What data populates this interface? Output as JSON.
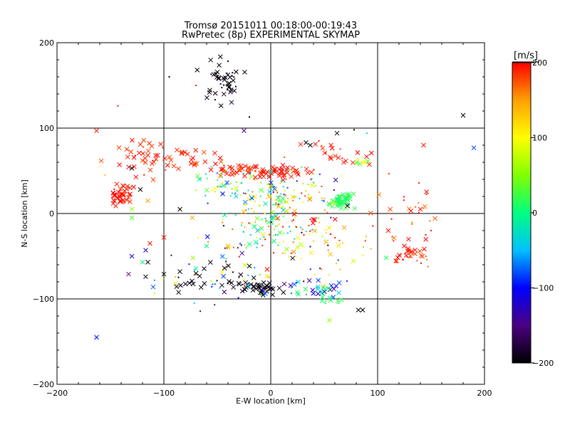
{
  "chart_data": {
    "type": "scatter",
    "title": "Tromsø 20151011 00:18:00-00:19:43",
    "subtitle": "RwPretec (8p) EXPERIMENTAL SKYMAP",
    "xlabel": "E-W location [km]",
    "ylabel": "N-S location [km]",
    "xlim": [
      -200,
      200
    ],
    "ylim": [
      -200,
      200
    ],
    "xticks": [
      "−200",
      "−100",
      "0",
      "100",
      "200"
    ],
    "yticks": [
      "−200",
      "−100",
      "0",
      "100",
      "200"
    ],
    "grid": true,
    "colorbar": {
      "label": "[m/s]",
      "range": [
        -200,
        200
      ],
      "ticks": [
        "200",
        "100",
        "0",
        "−100",
        "−200"
      ],
      "colors": [
        "#000000",
        "#4b0082",
        "#0000ff",
        "#00c0ff",
        "#00ff80",
        "#80ff00",
        "#ffff00",
        "#ffa000",
        "#ff0000"
      ]
    },
    "markers": {
      "cross": "x",
      "dot": "+"
    },
    "clusters": [
      {
        "x": -45,
        "y": 155,
        "sx": 9,
        "sy": 14,
        "n": 45,
        "v": -195,
        "dv": 10,
        "m": "cross"
      },
      {
        "x": -140,
        "y": 22,
        "sx": 5,
        "sy": 6,
        "n": 45,
        "v": 195,
        "dv": 10,
        "m": "cross"
      },
      {
        "x": -115,
        "y": 62,
        "sx": 15,
        "sy": 12,
        "n": 35,
        "v": 190,
        "dv": 15,
        "m": "cross"
      },
      {
        "x": -75,
        "y": 62,
        "sx": 22,
        "sy": 8,
        "n": 30,
        "v": 190,
        "dv": 15,
        "m": "cross"
      },
      {
        "x": -25,
        "y": 50,
        "sx": 14,
        "sy": 4,
        "n": 40,
        "v": 190,
        "dv": 15,
        "m": "cross"
      },
      {
        "x": 12,
        "y": 48,
        "sx": 12,
        "sy": 4,
        "n": 40,
        "v": 195,
        "dv": 10,
        "m": "cross"
      },
      {
        "x": 65,
        "y": 15,
        "sx": 5,
        "sy": 5,
        "n": 60,
        "v": 15,
        "dv": 12,
        "m": "cross"
      },
      {
        "x": 0,
        "y": 0,
        "sx": 18,
        "sy": 20,
        "n": 120,
        "v": 60,
        "dv": 120,
        "m": "dot"
      },
      {
        "x": -40,
        "y": 32,
        "sx": 15,
        "sy": 10,
        "n": 50,
        "v": 10,
        "dv": 100,
        "m": "dot"
      },
      {
        "x": -10,
        "y": -88,
        "sx": 10,
        "sy": 4,
        "n": 40,
        "v": -195,
        "dv": 10,
        "m": "cross"
      },
      {
        "x": 45,
        "y": -88,
        "sx": 14,
        "sy": 5,
        "n": 35,
        "v": -60,
        "dv": 90,
        "m": "cross"
      },
      {
        "x": 130,
        "y": -45,
        "sx": 7,
        "sy": 6,
        "n": 30,
        "v": 190,
        "dv": 15,
        "m": "cross"
      },
      {
        "x": 130,
        "y": -10,
        "sx": 15,
        "sy": 25,
        "n": 30,
        "v": 180,
        "dv": 25,
        "m": "dot"
      },
      {
        "x": 65,
        "y": 70,
        "sx": 12,
        "sy": 8,
        "n": 20,
        "v": 190,
        "dv": 15,
        "m": "cross"
      },
      {
        "x": -20,
        "y": -55,
        "sx": 40,
        "sy": 25,
        "n": 80,
        "v": 0,
        "dv": 200,
        "m": "dot"
      },
      {
        "x": 20,
        "y": 25,
        "sx": 25,
        "sy": 15,
        "n": 60,
        "v": 20,
        "dv": 180,
        "m": "dot"
      },
      {
        "x": 40,
        "y": -30,
        "sx": 30,
        "sy": 25,
        "n": 70,
        "v": 150,
        "dv": 80,
        "m": "dot"
      },
      {
        "x": -50,
        "y": -75,
        "sx": 20,
        "sy": 10,
        "n": 25,
        "v": -195,
        "dv": 10,
        "m": "cross"
      },
      {
        "x": 85,
        "y": 60,
        "sx": 3,
        "sy": 3,
        "n": 8,
        "v": 60,
        "dv": 40,
        "m": "cross"
      },
      {
        "x": 55,
        "y": -100,
        "sx": 5,
        "sy": 3,
        "n": 10,
        "v": 10,
        "dv": 20,
        "m": "cross"
      }
    ],
    "points": [
      {
        "x": -163,
        "y": -145,
        "v": -100,
        "m": "cross"
      },
      {
        "x": -163,
        "y": 97,
        "v": 190,
        "m": "cross"
      },
      {
        "x": 180,
        "y": 115,
        "v": -200,
        "m": "cross"
      },
      {
        "x": 190,
        "y": 77,
        "v": -80,
        "m": "cross"
      },
      {
        "x": 143,
        "y": 80,
        "v": 195,
        "m": "cross"
      },
      {
        "x": -143,
        "y": 126,
        "v": 200,
        "m": "dot"
      },
      {
        "x": -95,
        "y": 160,
        "v": -200,
        "m": "dot"
      },
      {
        "x": -70,
        "y": 150,
        "v": 190,
        "m": "dot"
      },
      {
        "x": 55,
        "y": -125,
        "v": 60,
        "m": "cross"
      },
      {
        "x": 82,
        "y": -113,
        "v": -200,
        "m": "cross"
      },
      {
        "x": 86,
        "y": -113,
        "v": -200,
        "m": "cross"
      },
      {
        "x": 62,
        "y": 94,
        "v": -200,
        "m": "cross"
      },
      {
        "x": 78,
        "y": 98,
        "v": -200,
        "m": "dot"
      },
      {
        "x": 90,
        "y": 94,
        "v": -30,
        "m": "dot"
      },
      {
        "x": -25,
        "y": 97,
        "v": -150,
        "m": "cross"
      },
      {
        "x": -20,
        "y": 113,
        "v": -200,
        "m": "dot"
      },
      {
        "x": -130,
        "y": -50,
        "v": -120,
        "m": "cross"
      },
      {
        "x": -133,
        "y": -71,
        "v": -150,
        "m": "cross"
      },
      {
        "x": -110,
        "y": -86,
        "v": -80,
        "m": "cross"
      },
      {
        "x": -117,
        "y": -74,
        "v": -200,
        "m": "cross"
      },
      {
        "x": -100,
        "y": -71,
        "v": -200,
        "m": "cross"
      },
      {
        "x": -85,
        "y": -68,
        "v": -200,
        "m": "cross"
      },
      {
        "x": -120,
        "y": -57,
        "v": 0,
        "m": "cross"
      },
      {
        "x": -115,
        "y": -57,
        "v": -200,
        "m": "cross"
      },
      {
        "x": -117,
        "y": -43,
        "v": -130,
        "m": "cross"
      },
      {
        "x": -113,
        "y": -35,
        "v": 195,
        "m": "cross"
      },
      {
        "x": -100,
        "y": -28,
        "v": 195,
        "m": "cross"
      },
      {
        "x": -160,
        "y": 55,
        "v": 100,
        "m": "dot"
      },
      {
        "x": -155,
        "y": 45,
        "v": 130,
        "m": "dot"
      },
      {
        "x": -130,
        "y": 53,
        "v": -200,
        "m": "cross"
      },
      {
        "x": -122,
        "y": 28,
        "v": -200,
        "m": "cross"
      },
      {
        "x": -115,
        "y": 15,
        "v": 150,
        "m": "cross"
      },
      {
        "x": -130,
        "y": 5,
        "v": 60,
        "m": "cross"
      },
      {
        "x": -130,
        "y": -5,
        "v": 30,
        "m": "cross"
      },
      {
        "x": -85,
        "y": 5,
        "v": -200,
        "m": "cross"
      },
      {
        "x": -45,
        "y": 23,
        "v": -100,
        "m": "cross"
      },
      {
        "x": 33,
        "y": 83,
        "v": -200,
        "m": "cross"
      },
      {
        "x": 37,
        "y": 80,
        "v": -200,
        "m": "cross"
      },
      {
        "x": 28,
        "y": 81,
        "v": 190,
        "m": "cross"
      },
      {
        "x": 45,
        "y": 85,
        "v": 195,
        "m": "dot"
      },
      {
        "x": -60,
        "y": -38,
        "v": 0,
        "m": "cross"
      },
      {
        "x": -40,
        "y": -38,
        "v": 130,
        "m": "cross"
      },
      {
        "x": -70,
        "y": -70,
        "v": -200,
        "m": "cross"
      },
      {
        "x": 108,
        "y": -52,
        "v": 10,
        "m": "cross"
      },
      {
        "x": 110,
        "y": -20,
        "v": 195,
        "m": "cross"
      },
      {
        "x": 140,
        "y": 5,
        "v": 195,
        "m": "cross"
      },
      {
        "x": 150,
        "y": -20,
        "v": 195,
        "m": "dot"
      }
    ]
  }
}
